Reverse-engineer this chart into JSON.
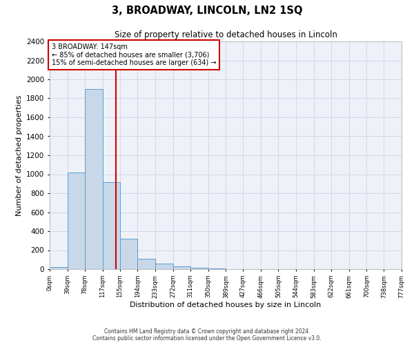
{
  "title": "3, BROADWAY, LINCOLN, LN2 1SQ",
  "subtitle": "Size of property relative to detached houses in Lincoln",
  "xlabel": "Distribution of detached houses by size in Lincoln",
  "ylabel": "Number of detached properties",
  "bin_edges": [
    0,
    39,
    78,
    117,
    155,
    194,
    233,
    272,
    311,
    350,
    389,
    427,
    466,
    505,
    544,
    583,
    622,
    661,
    700,
    738,
    777
  ],
  "bin_heights": [
    25,
    1020,
    1900,
    920,
    320,
    110,
    55,
    30,
    15,
    5,
    0,
    0,
    0,
    0,
    0,
    0,
    0,
    0,
    0,
    0
  ],
  "bar_color": "#c8d8e8",
  "bar_edge_color": "#5b9bd5",
  "property_size": 147,
  "vline_color": "#cc0000",
  "annotation_text_line1": "3 BROADWAY: 147sqm",
  "annotation_text_line2": "← 85% of detached houses are smaller (3,706)",
  "annotation_text_line3": "15% of semi-detached houses are larger (634) →",
  "annotation_box_color": "#cc0000",
  "ylim": [
    0,
    2400
  ],
  "yticks": [
    0,
    200,
    400,
    600,
    800,
    1000,
    1200,
    1400,
    1600,
    1800,
    2000,
    2200,
    2400
  ],
  "xtick_labels": [
    "0sqm",
    "39sqm",
    "78sqm",
    "117sqm",
    "155sqm",
    "194sqm",
    "233sqm",
    "272sqm",
    "311sqm",
    "350sqm",
    "389sqm",
    "427sqm",
    "466sqm",
    "505sqm",
    "544sqm",
    "583sqm",
    "622sqm",
    "661sqm",
    "700sqm",
    "738sqm",
    "777sqm"
  ],
  "grid_color": "#d0d8e8",
  "bg_color": "#eef2f8",
  "footer_line1": "Contains HM Land Registry data © Crown copyright and database right 2024.",
  "footer_line2": "Contains public sector information licensed under the Open Government Licence v3.0."
}
